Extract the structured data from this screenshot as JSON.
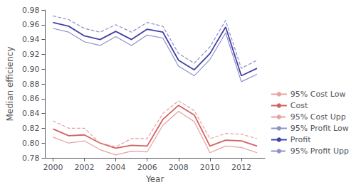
{
  "chart_data": {
    "type": "line",
    "x": [
      2000,
      2001,
      2002,
      2003,
      2004,
      2005,
      2006,
      2007,
      2008,
      2009,
      2010,
      2011,
      2012,
      2013
    ],
    "series": [
      {
        "name": "95% Cost Low",
        "color": "#e8a0a0",
        "line_style": "solid",
        "values": [
          0.808,
          0.8,
          0.803,
          0.791,
          0.784,
          0.789,
          0.788,
          0.824,
          0.843,
          0.829,
          0.787,
          0.796,
          0.794,
          0.787
        ]
      },
      {
        "name": "Cost",
        "color": "#d46060",
        "line_style": "solid",
        "values": [
          0.819,
          0.81,
          0.811,
          0.8,
          0.793,
          0.797,
          0.796,
          0.832,
          0.851,
          0.838,
          0.796,
          0.804,
          0.803,
          0.796
        ]
      },
      {
        "name": "95% Cost Upp",
        "color": "#e8a0a0",
        "line_style": "dashed",
        "values": [
          0.83,
          0.82,
          0.82,
          0.8,
          0.795,
          0.806,
          0.806,
          0.84,
          0.857,
          0.844,
          0.806,
          0.813,
          0.812,
          0.806
        ]
      },
      {
        "name": "95% Profit Low",
        "color": "#9090c8",
        "line_style": "solid",
        "values": [
          0.955,
          0.95,
          0.937,
          0.932,
          0.944,
          0.932,
          0.946,
          0.942,
          0.904,
          0.891,
          0.913,
          0.949,
          0.883,
          0.893
        ]
      },
      {
        "name": "Profit",
        "color": "#4040a8",
        "line_style": "solid",
        "values": [
          0.963,
          0.958,
          0.945,
          0.94,
          0.951,
          0.94,
          0.954,
          0.95,
          0.912,
          0.899,
          0.921,
          0.957,
          0.891,
          0.901
        ]
      },
      {
        "name": "95% Profit Upp",
        "color": "#9090c8",
        "line_style": "dashed",
        "values": [
          0.972,
          0.967,
          0.955,
          0.95,
          0.96,
          0.95,
          0.963,
          0.958,
          0.921,
          0.908,
          0.93,
          0.966,
          0.901,
          0.912
        ]
      }
    ],
    "xlabel": "Year",
    "ylabel": "Median efficiency",
    "xlim": [
      1999.5,
      2013.5
    ],
    "xticks": [
      2000,
      2002,
      2004,
      2006,
      2008,
      2010,
      2012
    ],
    "ylim": [
      0.78,
      0.98
    ],
    "yticks": [
      0.78,
      {
        "value": 0.8,
        "label": "0.80"
      },
      0.82,
      0.84,
      0.86,
      0.88,
      {
        "value": 0.9,
        "label": "0.90"
      },
      0.92,
      0.94,
      0.96,
      0.98
    ],
    "grid": false,
    "legend": "lower right"
  }
}
